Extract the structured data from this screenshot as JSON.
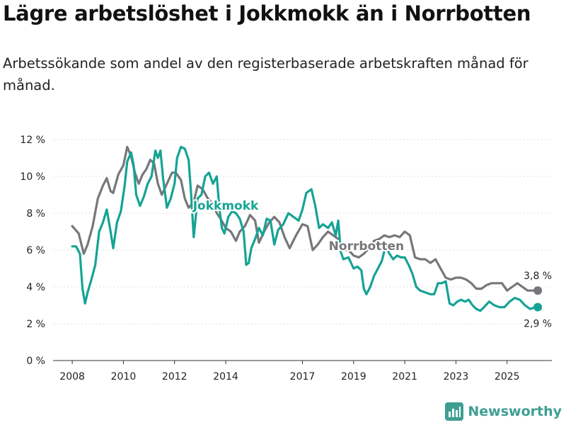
{
  "title": "Lägre arbetslöshet i Jokkmokk än i Norrbotten",
  "subtitle": "Arbetssökande som andel av den registerbaserade arbetskraften månad för månad.",
  "brand": {
    "name": "Newsworthy",
    "icon": "bar-chart-logo-icon",
    "color": "#3f9e92"
  },
  "colors": {
    "jokkmokk": "#16a394",
    "norrbotten": "#77777b",
    "grid": "#dddddd",
    "axis": "#333333"
  },
  "chart_data": {
    "type": "line",
    "title": "Lägre arbetslöshet i Jokkmokk än i Norrbotten",
    "xlabel": "",
    "ylabel": "",
    "xlim": [
      2007.25,
      2026.75
    ],
    "ylim": [
      0,
      12
    ],
    "yticks": [
      0,
      2,
      4,
      6,
      8,
      10,
      12
    ],
    "ytick_labels": [
      "0 %",
      "2 %",
      "4 %",
      "6 %",
      "8 %",
      "10 %",
      "12 %"
    ],
    "xticks": [
      2008,
      2010,
      2012,
      2014,
      2017,
      2019,
      2021,
      2023,
      2025
    ],
    "xtick_labels": [
      "2008",
      "2010",
      "2012",
      "2014",
      "2017",
      "2019",
      "2021",
      "2023",
      "2025"
    ],
    "grid": "horizontal",
    "series": [
      {
        "name": "Norrbotten",
        "label": "Norrbotten",
        "end_label": "3,8 %",
        "points": [
          [
            2008.0,
            7.3
          ],
          [
            2008.25,
            6.9
          ],
          [
            2008.45,
            5.8
          ],
          [
            2008.6,
            6.3
          ],
          [
            2008.8,
            7.3
          ],
          [
            2009.0,
            8.8
          ],
          [
            2009.2,
            9.5
          ],
          [
            2009.35,
            9.9
          ],
          [
            2009.5,
            9.2
          ],
          [
            2009.6,
            9.1
          ],
          [
            2009.8,
            10.1
          ],
          [
            2010.0,
            10.6
          ],
          [
            2010.15,
            11.6
          ],
          [
            2010.3,
            11.1
          ],
          [
            2010.45,
            10.2
          ],
          [
            2010.6,
            9.6
          ],
          [
            2010.75,
            10.1
          ],
          [
            2010.9,
            10.4
          ],
          [
            2011.05,
            10.9
          ],
          [
            2011.2,
            10.7
          ],
          [
            2011.35,
            9.6
          ],
          [
            2011.5,
            9.0
          ],
          [
            2011.7,
            9.6
          ],
          [
            2011.9,
            10.2
          ],
          [
            2012.05,
            10.2
          ],
          [
            2012.25,
            9.8
          ],
          [
            2012.4,
            8.8
          ],
          [
            2012.55,
            8.3
          ],
          [
            2012.75,
            8.6
          ],
          [
            2012.9,
            9.5
          ],
          [
            2013.1,
            9.3
          ],
          [
            2013.3,
            8.8
          ],
          [
            2013.5,
            8.5
          ],
          [
            2013.65,
            8.0
          ],
          [
            2013.8,
            7.7
          ],
          [
            2014.0,
            7.2
          ],
          [
            2014.2,
            7.0
          ],
          [
            2014.4,
            6.5
          ],
          [
            2014.55,
            7.0
          ],
          [
            2014.75,
            7.3
          ],
          [
            2014.95,
            7.9
          ],
          [
            2015.15,
            7.6
          ],
          [
            2015.3,
            6.4
          ],
          [
            2015.5,
            7.0
          ],
          [
            2015.7,
            7.5
          ],
          [
            2015.9,
            7.8
          ],
          [
            2016.1,
            7.5
          ],
          [
            2016.3,
            6.7
          ],
          [
            2016.5,
            6.1
          ],
          [
            2016.75,
            6.8
          ],
          [
            2017.0,
            7.4
          ],
          [
            2017.2,
            7.3
          ],
          [
            2017.4,
            6.0
          ],
          [
            2017.6,
            6.3
          ],
          [
            2017.8,
            6.7
          ],
          [
            2018.0,
            7.0
          ],
          [
            2018.2,
            6.8
          ],
          [
            2018.4,
            6.6
          ],
          [
            2018.6,
            6.0
          ],
          [
            2018.8,
            6.0
          ],
          [
            2019.0,
            5.7
          ],
          [
            2019.2,
            5.6
          ],
          [
            2019.4,
            5.8
          ],
          [
            2019.6,
            6.1
          ],
          [
            2019.8,
            6.5
          ],
          [
            2020.0,
            6.6
          ],
          [
            2020.2,
            6.8
          ],
          [
            2020.4,
            6.7
          ],
          [
            2020.6,
            6.8
          ],
          [
            2020.8,
            6.7
          ],
          [
            2021.0,
            7.0
          ],
          [
            2021.2,
            6.8
          ],
          [
            2021.4,
            5.6
          ],
          [
            2021.6,
            5.5
          ],
          [
            2021.8,
            5.5
          ],
          [
            2022.0,
            5.3
          ],
          [
            2022.2,
            5.5
          ],
          [
            2022.4,
            5.0
          ],
          [
            2022.6,
            4.5
          ],
          [
            2022.8,
            4.4
          ],
          [
            2023.0,
            4.5
          ],
          [
            2023.2,
            4.5
          ],
          [
            2023.4,
            4.4
          ],
          [
            2023.6,
            4.2
          ],
          [
            2023.8,
            3.9
          ],
          [
            2024.0,
            3.9
          ],
          [
            2024.2,
            4.1
          ],
          [
            2024.4,
            4.2
          ],
          [
            2024.6,
            4.2
          ],
          [
            2024.8,
            4.2
          ],
          [
            2025.0,
            3.8
          ],
          [
            2025.2,
            4.0
          ],
          [
            2025.4,
            4.2
          ],
          [
            2025.6,
            4.0
          ],
          [
            2025.8,
            3.8
          ],
          [
            2026.0,
            3.8
          ],
          [
            2026.2,
            3.8
          ]
        ]
      },
      {
        "name": "Jokkmokk",
        "label": "Jokkmokk",
        "end_label": "2,9 %",
        "points": [
          [
            2008.0,
            6.2
          ],
          [
            2008.15,
            6.2
          ],
          [
            2008.3,
            5.8
          ],
          [
            2008.4,
            3.9
          ],
          [
            2008.5,
            3.1
          ],
          [
            2008.6,
            3.7
          ],
          [
            2008.75,
            4.4
          ],
          [
            2008.9,
            5.2
          ],
          [
            2009.05,
            7.0
          ],
          [
            2009.2,
            7.5
          ],
          [
            2009.35,
            8.2
          ],
          [
            2009.5,
            7.0
          ],
          [
            2009.6,
            6.1
          ],
          [
            2009.75,
            7.5
          ],
          [
            2009.9,
            8.1
          ],
          [
            2010.05,
            9.5
          ],
          [
            2010.15,
            10.8
          ],
          [
            2010.3,
            11.3
          ],
          [
            2010.4,
            10.6
          ],
          [
            2010.5,
            9.0
          ],
          [
            2010.65,
            8.4
          ],
          [
            2010.8,
            8.9
          ],
          [
            2010.95,
            9.6
          ],
          [
            2011.1,
            10.0
          ],
          [
            2011.25,
            11.4
          ],
          [
            2011.35,
            11.0
          ],
          [
            2011.45,
            11.4
          ],
          [
            2011.55,
            9.9
          ],
          [
            2011.7,
            8.3
          ],
          [
            2011.85,
            8.8
          ],
          [
            2012.0,
            9.6
          ],
          [
            2012.1,
            11.0
          ],
          [
            2012.25,
            11.6
          ],
          [
            2012.4,
            11.5
          ],
          [
            2012.55,
            10.9
          ],
          [
            2012.65,
            9.0
          ],
          [
            2012.75,
            6.7
          ],
          [
            2012.9,
            8.8
          ],
          [
            2013.05,
            9.0
          ],
          [
            2013.2,
            10.0
          ],
          [
            2013.35,
            10.2
          ],
          [
            2013.5,
            9.6
          ],
          [
            2013.65,
            10.0
          ],
          [
            2013.75,
            8.3
          ],
          [
            2013.85,
            7.2
          ],
          [
            2013.95,
            6.9
          ],
          [
            2014.1,
            7.8
          ],
          [
            2014.25,
            8.1
          ],
          [
            2014.4,
            8.0
          ],
          [
            2014.55,
            7.7
          ],
          [
            2014.7,
            7.0
          ],
          [
            2014.8,
            5.2
          ],
          [
            2014.9,
            5.3
          ],
          [
            2015.0,
            6.1
          ],
          [
            2015.15,
            6.6
          ],
          [
            2015.3,
            7.2
          ],
          [
            2015.45,
            6.8
          ],
          [
            2015.6,
            7.7
          ],
          [
            2015.75,
            7.6
          ],
          [
            2015.9,
            6.3
          ],
          [
            2016.05,
            7.1
          ],
          [
            2016.25,
            7.4
          ],
          [
            2016.45,
            8.0
          ],
          [
            2016.65,
            7.8
          ],
          [
            2016.85,
            7.6
          ],
          [
            2017.0,
            8.2
          ],
          [
            2017.15,
            9.1
          ],
          [
            2017.35,
            9.3
          ],
          [
            2017.5,
            8.4
          ],
          [
            2017.65,
            7.2
          ],
          [
            2017.8,
            7.4
          ],
          [
            2018.0,
            7.2
          ],
          [
            2018.15,
            7.5
          ],
          [
            2018.3,
            6.8
          ],
          [
            2018.4,
            7.6
          ],
          [
            2018.5,
            5.9
          ],
          [
            2018.6,
            5.5
          ],
          [
            2018.8,
            5.6
          ],
          [
            2019.0,
            5.0
          ],
          [
            2019.15,
            5.1
          ],
          [
            2019.3,
            4.9
          ],
          [
            2019.4,
            3.9
          ],
          [
            2019.5,
            3.6
          ],
          [
            2019.65,
            4.0
          ],
          [
            2019.8,
            4.6
          ],
          [
            2019.95,
            5.0
          ],
          [
            2020.1,
            5.4
          ],
          [
            2020.25,
            6.2
          ],
          [
            2020.4,
            5.8
          ],
          [
            2020.55,
            5.5
          ],
          [
            2020.7,
            5.7
          ],
          [
            2020.85,
            5.6
          ],
          [
            2021.0,
            5.6
          ],
          [
            2021.15,
            5.2
          ],
          [
            2021.3,
            4.7
          ],
          [
            2021.45,
            4.0
          ],
          [
            2021.6,
            3.8
          ],
          [
            2021.8,
            3.7
          ],
          [
            2022.0,
            3.6
          ],
          [
            2022.15,
            3.6
          ],
          [
            2022.3,
            4.2
          ],
          [
            2022.45,
            4.2
          ],
          [
            2022.6,
            4.3
          ],
          [
            2022.75,
            3.1
          ],
          [
            2022.9,
            3.0
          ],
          [
            2023.05,
            3.2
          ],
          [
            2023.2,
            3.3
          ],
          [
            2023.35,
            3.2
          ],
          [
            2023.5,
            3.3
          ],
          [
            2023.65,
            3.0
          ],
          [
            2023.8,
            2.8
          ],
          [
            2023.95,
            2.7
          ],
          [
            2024.1,
            2.9
          ],
          [
            2024.3,
            3.2
          ],
          [
            2024.5,
            3.0
          ],
          [
            2024.7,
            2.9
          ],
          [
            2024.9,
            2.9
          ],
          [
            2025.1,
            3.2
          ],
          [
            2025.3,
            3.4
          ],
          [
            2025.5,
            3.3
          ],
          [
            2025.7,
            3.0
          ],
          [
            2025.9,
            2.8
          ],
          [
            2026.1,
            2.9
          ],
          [
            2026.2,
            2.9
          ]
        ]
      }
    ]
  }
}
